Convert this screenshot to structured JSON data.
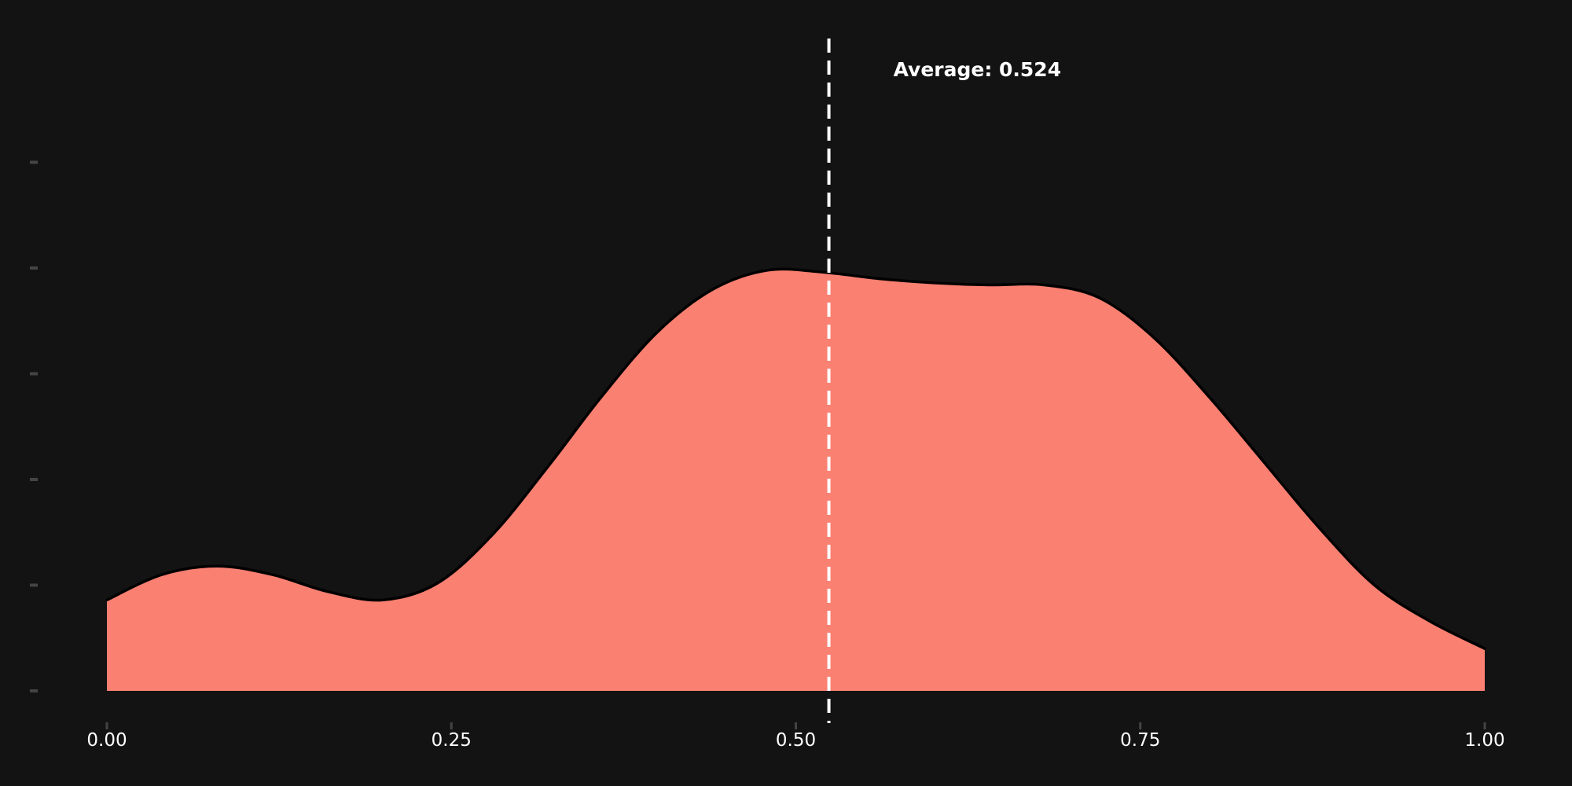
{
  "chart_data": {
    "type": "area",
    "title": "",
    "xlabel": "",
    "ylabel": "",
    "xlim": [
      0,
      1
    ],
    "ylim": [
      0,
      3
    ],
    "x_ticks": [
      "0.00",
      "0.25",
      "0.50",
      "0.75",
      "1.00"
    ],
    "x_tick_values": [
      0,
      0.25,
      0.5,
      0.75,
      1
    ],
    "y_tick_values": [
      0,
      0.5,
      1,
      1.5,
      2,
      2.5
    ],
    "y_tick_labels_shown": false,
    "grid": false,
    "series": [
      {
        "x": [
          0,
          0.04,
          0.08,
          0.12,
          0.16,
          0.2,
          0.24,
          0.28,
          0.32,
          0.36,
          0.4,
          0.44,
          0.48,
          0.52,
          0.56,
          0.6,
          0.64,
          0.68,
          0.72,
          0.76,
          0.8,
          0.84,
          0.88,
          0.92,
          0.96,
          1
        ],
        "y": [
          0.43,
          0.55,
          0.59,
          0.55,
          0.47,
          0.43,
          0.51,
          0.74,
          1.06,
          1.4,
          1.7,
          1.9,
          1.99,
          1.98,
          1.95,
          1.93,
          1.92,
          1.92,
          1.86,
          1.67,
          1.39,
          1.08,
          0.77,
          0.5,
          0.33,
          0.2
        ]
      }
    ],
    "reference_line": {
      "x": 0.524,
      "style": "dashed",
      "label": "Average: 0.524"
    },
    "colors": {
      "background": "#131313",
      "fill": "#fa8072",
      "outline": "#000000",
      "reference_line": "#ffffff",
      "tick": "#444444",
      "tick_label": "#ffffff"
    }
  }
}
